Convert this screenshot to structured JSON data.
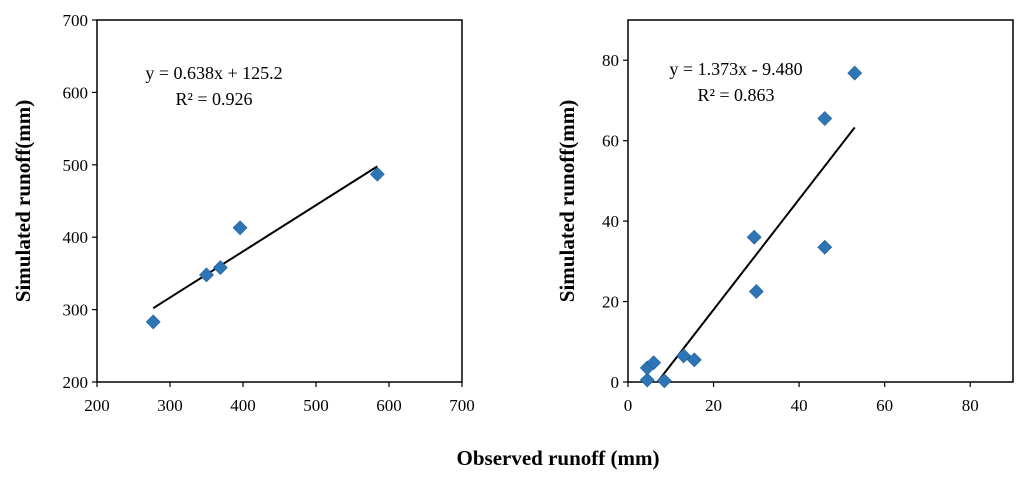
{
  "shared_xlabel": "Observed runoff (mm)",
  "chart_data": [
    {
      "type": "scatter",
      "xlabel": "Observed runoff (mm)",
      "ylabel": "Simulated runoff(mm)",
      "xlim": [
        200,
        700
      ],
      "ylim": [
        200,
        700
      ],
      "xticks": [
        200,
        300,
        400,
        500,
        600,
        700
      ],
      "yticks": [
        200,
        300,
        400,
        500,
        600,
        700
      ],
      "grid": false,
      "points": [
        {
          "x": 277,
          "y": 283
        },
        {
          "x": 350,
          "y": 348
        },
        {
          "x": 369,
          "y": 358
        },
        {
          "x": 396,
          "y": 413
        },
        {
          "x": 584,
          "y": 487
        }
      ],
      "trendline": {
        "slope": 0.638,
        "intercept": 125.2,
        "x_range": [
          277,
          584
        ]
      },
      "equation_text": "y = 0.638x + 125.2",
      "r2_text": "R² = 0.926",
      "marker_color": "#2E75B6",
      "line_color": "#000000"
    },
    {
      "type": "scatter",
      "xlabel": "Observed runoff (mm)",
      "ylabel": "Simulated runoff(mm)",
      "xlim": [
        0,
        90
      ],
      "ylim": [
        0,
        90
      ],
      "xticks": [
        0,
        20,
        40,
        60,
        80
      ],
      "yticks": [
        0,
        20,
        40,
        60,
        80
      ],
      "grid": false,
      "points": [
        {
          "x": 4.5,
          "y": 0.5
        },
        {
          "x": 4.5,
          "y": 3.5
        },
        {
          "x": 6,
          "y": 4.8
        },
        {
          "x": 8.5,
          "y": 0.3
        },
        {
          "x": 13,
          "y": 6.5
        },
        {
          "x": 15.5,
          "y": 5.5
        },
        {
          "x": 29.5,
          "y": 36
        },
        {
          "x": 30,
          "y": 22.5
        },
        {
          "x": 46,
          "y": 65.5
        },
        {
          "x": 46,
          "y": 33.5
        },
        {
          "x": 53,
          "y": 76.8
        }
      ],
      "trendline": {
        "slope": 1.373,
        "intercept": -9.48,
        "x_range": [
          6.9,
          53
        ]
      },
      "equation_text": "y = 1.373x - 9.480",
      "r2_text": "R² = 0.863",
      "marker_color": "#2E75B6",
      "line_color": "#000000"
    }
  ]
}
